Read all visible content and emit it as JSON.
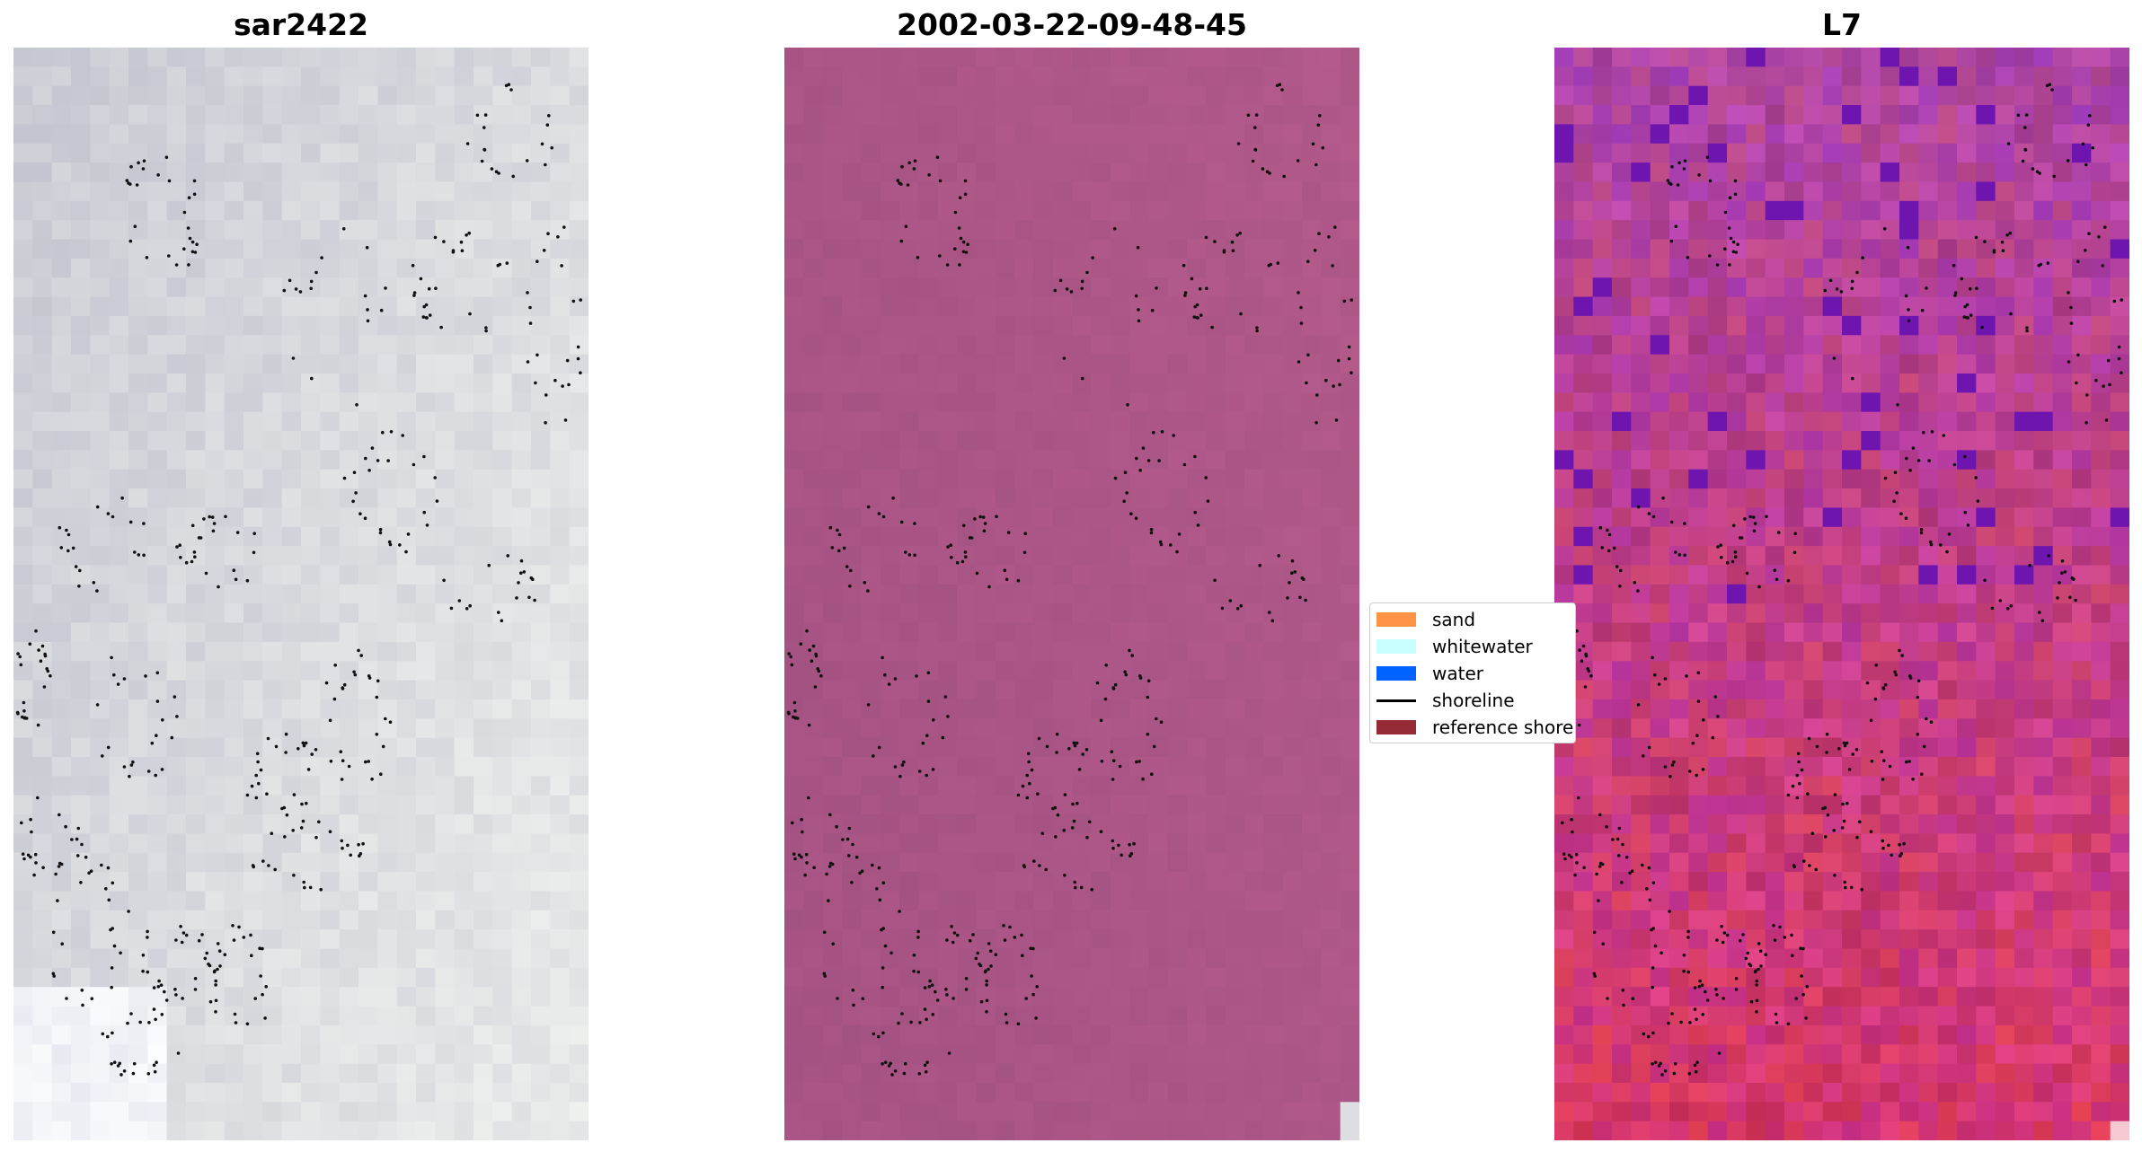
{
  "panels": [
    {
      "title": "sar2422"
    },
    {
      "title": "2002-03-22-09-48-45"
    },
    {
      "title": "L7"
    }
  ],
  "legend": {
    "items": [
      {
        "label": "sand",
        "color": "#ff9446",
        "kind": "patch"
      },
      {
        "label": "whitewater",
        "color": "#c8ffff",
        "kind": "patch"
      },
      {
        "label": "water",
        "color": "#0062ff",
        "kind": "patch"
      },
      {
        "label": "shoreline",
        "color": "#000000",
        "kind": "line"
      },
      {
        "label": "reference shoreline",
        "color": "#952c35",
        "kind": "patch"
      }
    ]
  },
  "colors": {
    "sar_base": "#c9cbd4",
    "rgb_base": "#a95585",
    "l7_base": "#b05390",
    "dots": "#111111"
  }
}
